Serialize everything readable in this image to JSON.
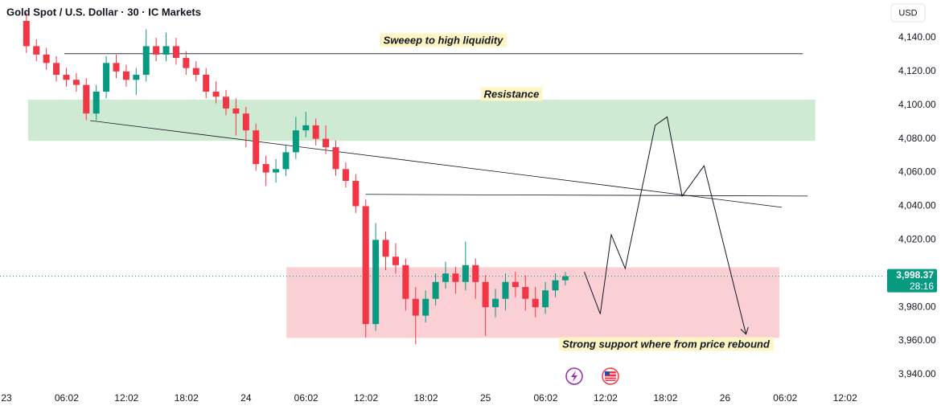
{
  "chart_data": {
    "type": "candlestick",
    "title": "Gold Spot / U.S. Dollar · 30 · IC Markets",
    "currency": "USD",
    "x": [
      2,
      3,
      4,
      5,
      6,
      7,
      8,
      9,
      10,
      11,
      12,
      13,
      14,
      15,
      16,
      17,
      18,
      19,
      20,
      21,
      22,
      23,
      24,
      25,
      26,
      27,
      28,
      29,
      30,
      31,
      32,
      33,
      34,
      35,
      36,
      37,
      38,
      39,
      40,
      41,
      42,
      43,
      44,
      45,
      46,
      47,
      48,
      49,
      50,
      51,
      52,
      53,
      54,
      55,
      56
    ],
    "open": [
      4150,
      4135,
      4130,
      4125,
      4118,
      4115,
      4112,
      4095,
      4108,
      4125,
      4120,
      4115,
      4118,
      4135,
      4130,
      4135,
      4128,
      4122,
      4118,
      4108,
      4105,
      4098,
      4095,
      4085,
      4065,
      4060,
      4062,
      4072,
      4085,
      4088,
      4080,
      4075,
      4062,
      4055,
      4040,
      3970,
      4020,
      4010,
      4005,
      3985,
      3975,
      3985,
      3995,
      4000,
      3995,
      4005,
      3995,
      3980,
      3985,
      3995,
      3992,
      3985,
      3980,
      3990,
      3996
    ],
    "high": [
      4155,
      4139,
      4134,
      4129,
      4122,
      4119,
      4116,
      4112,
      4129,
      4130,
      4124,
      4122,
      4145,
      4140,
      4143,
      4140,
      4132,
      4126,
      4122,
      4114,
      4109,
      4104,
      4099,
      4089,
      4070,
      4068,
      4076,
      4093,
      4096,
      4092,
      4088,
      4079,
      4066,
      4059,
      4044,
      4030,
      4025,
      4018,
      4009,
      3992,
      3990,
      4000,
      4007,
      4004,
      4019,
      4009,
      3999,
      3991,
      4000,
      4001,
      3999,
      3992,
      3995,
      4000,
      4001
    ],
    "low": [
      4131,
      4126,
      4121,
      4114,
      4111,
      4108,
      4091,
      4091,
      4104,
      4116,
      4111,
      4106,
      4114,
      4126,
      4126,
      4124,
      4118,
      4114,
      4104,
      4101,
      4094,
      4082,
      4075,
      4061,
      4052,
      4054,
      4058,
      4068,
      4081,
      4076,
      4071,
      4058,
      4051,
      4036,
      3962,
      3966,
      4002,
      4000,
      3978,
      3958,
      3971,
      3981,
      3991,
      3988,
      3990,
      3985,
      3963,
      3974,
      3978,
      3986,
      3978,
      3974,
      3976,
      3986,
      3993
    ],
    "close": [
      4135,
      4130,
      4125,
      4118,
      4115,
      4112,
      4095,
      4108,
      4125,
      4120,
      4115,
      4118,
      4135,
      4130,
      4135,
      4128,
      4122,
      4118,
      4108,
      4105,
      4098,
      4095,
      4085,
      4065,
      4060,
      4062,
      4072,
      4085,
      4088,
      4080,
      4075,
      4062,
      4055,
      4040,
      3970,
      4020,
      4010,
      4005,
      3985,
      3975,
      3985,
      3995,
      4000,
      3995,
      4005,
      3995,
      3980,
      3985,
      3995,
      3992,
      3985,
      3980,
      3990,
      3996,
      3998.37
    ],
    "up_color": "#089981",
    "down_color": "#f23645",
    "xlim": [
      -0.645,
      88
    ],
    "ylim": [
      3933.3,
      4162.4
    ],
    "yticks": [
      {
        "value": 4140,
        "label": "4,140.00"
      },
      {
        "value": 4120,
        "label": "4,120.00"
      },
      {
        "value": 4100,
        "label": "4,100.00"
      },
      {
        "value": 4080,
        "label": "4,080.00"
      },
      {
        "value": 4060,
        "label": "4,060.00"
      },
      {
        "value": 4040,
        "label": "4,040.00"
      },
      {
        "value": 4020,
        "label": "4,020.00"
      },
      {
        "value": 3980,
        "label": "3,980.00"
      },
      {
        "value": 3960,
        "label": "3,960.00"
      },
      {
        "value": 3940,
        "label": "3,940.00"
      }
    ],
    "xticks": [
      {
        "value": 0,
        "label": "23"
      },
      {
        "value": 6.033,
        "label": "06:02"
      },
      {
        "value": 12.033,
        "label": "12:02"
      },
      {
        "value": 18.033,
        "label": "18:02"
      },
      {
        "value": 24,
        "label": "24"
      },
      {
        "value": 30.033,
        "label": "06:02"
      },
      {
        "value": 36.033,
        "label": "12:02"
      },
      {
        "value": 42.033,
        "label": "18:02"
      },
      {
        "value": 48,
        "label": "25"
      },
      {
        "value": 54.033,
        "label": "06:02"
      },
      {
        "value": 60.033,
        "label": "12:02"
      },
      {
        "value": 66.033,
        "label": "18:02"
      },
      {
        "value": 72,
        "label": "26"
      },
      {
        "value": 78.033,
        "label": "06:02"
      },
      {
        "value": 84.033,
        "label": "12:02"
      }
    ],
    "last_price": {
      "value": 3998.37,
      "label": "3,998.37"
    },
    "countdown": "28:16",
    "grid": false,
    "zones": [
      {
        "x": [
          2.2,
          81
        ],
        "y": [
          4079,
          4103
        ],
        "color": "#cfead3"
      },
      {
        "x": [
          28.1,
          77.4
        ],
        "y": [
          3962,
          4003.5
        ],
        "color": "#fbd0d5"
      }
    ],
    "lines": [
      {
        "x": [
          5.8,
          79.8
        ],
        "y": [
          4130.5,
          4130.5
        ]
      },
      {
        "x": [
          8.4,
          77.7
        ],
        "y": [
          4090.8,
          4039.3
        ]
      },
      {
        "x": [
          36,
          80.3
        ],
        "y": [
          4047,
          4046
        ]
      }
    ],
    "projection": {
      "x": [
        57.9,
        59.5,
        60.6,
        62,
        65,
        66.2,
        67.7,
        69.9,
        74.1
      ],
      "y": [
        4001,
        3976,
        4023,
        4003,
        4088,
        4093,
        4046,
        4064,
        3964
      ]
    },
    "annotations": [
      "Sweeep to high liquidity",
      "Resistance",
      "Strong support where from price rebound"
    ]
  }
}
